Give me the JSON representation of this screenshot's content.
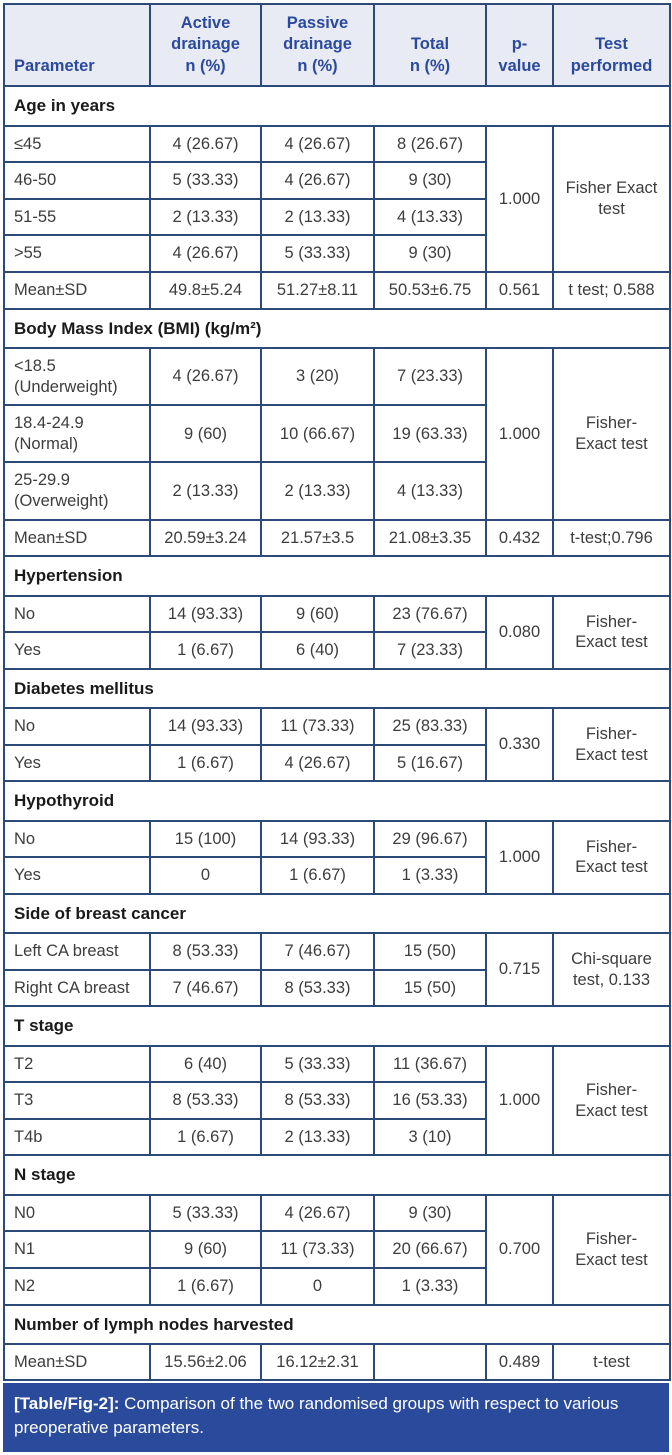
{
  "colors": {
    "border": "#2b4a77",
    "headerBg": "#e9ebf4",
    "headerText": "#2b4a9e",
    "captionBg": "#2a4b9b"
  },
  "table": {
    "columns": [
      {
        "key": "parameter",
        "label": "Parameter"
      },
      {
        "key": "active",
        "label": "Active\ndrainage\nn (%)"
      },
      {
        "key": "passive",
        "label": "Passive\ndrainage\nn (%)"
      },
      {
        "key": "total",
        "label": "Total\nn (%)"
      },
      {
        "key": "p-value",
        "label": "p-\nvalue"
      },
      {
        "key": "test-performed",
        "label": "Test\nperformed"
      }
    ],
    "sections": [
      {
        "header": "Age in years",
        "groups": [
          {
            "rows": [
              {
                "param": "≤45",
                "active": "4 (26.67)",
                "passive": "4 (26.67)",
                "total": "8 (26.67)"
              },
              {
                "param": "46-50",
                "active": "5 (33.33)",
                "passive": "4 (26.67)",
                "total": "9 (30)"
              },
              {
                "param": "51-55",
                "active": "2 (13.33)",
                "passive": "2 (13.33)",
                "total": "4 (13.33)"
              },
              {
                "param": ">55",
                "active": "4 (26.67)",
                "passive": "5 (33.33)",
                "total": "9 (30)"
              }
            ],
            "p": "1.000",
            "test": "Fisher Exact\ntest"
          },
          {
            "rows": [
              {
                "param": "Mean±SD",
                "active": "49.8±5.24",
                "passive": "51.27±8.11",
                "total": "50.53±6.75"
              }
            ],
            "p": "0.561",
            "test": "t test; 0.588"
          }
        ]
      },
      {
        "header": "Body Mass Index (BMI) (kg/m²)",
        "groups": [
          {
            "rows": [
              {
                "param": "<18.5\n(Underweight)",
                "active": "4 (26.67)",
                "passive": "3 (20)",
                "total": "7 (23.33)"
              },
              {
                "param": "18.4-24.9\n(Normal)",
                "active": "9 (60)",
                "passive": "10 (66.67)",
                "total": "19 (63.33)"
              },
              {
                "param": "25-29.9\n(Overweight)",
                "active": "2 (13.33)",
                "passive": "2 (13.33)",
                "total": "4 (13.33)"
              }
            ],
            "p": "1.000",
            "test": "Fisher-\nExact test"
          },
          {
            "rows": [
              {
                "param": "Mean±SD",
                "active": "20.59±3.24",
                "passive": "21.57±3.5",
                "total": "21.08±3.35"
              }
            ],
            "p": "0.432",
            "test": "t-test;0.796"
          }
        ]
      },
      {
        "header": "Hypertension",
        "groups": [
          {
            "rows": [
              {
                "param": "No",
                "active": "14 (93.33)",
                "passive": "9 (60)",
                "total": "23 (76.67)"
              },
              {
                "param": "Yes",
                "active": "1 (6.67)",
                "passive": "6 (40)",
                "total": "7 (23.33)"
              }
            ],
            "p": "0.080",
            "test": "Fisher-\nExact test"
          }
        ]
      },
      {
        "header": "Diabetes mellitus",
        "groups": [
          {
            "rows": [
              {
                "param": "No",
                "active": "14 (93.33)",
                "passive": "11 (73.33)",
                "total": "25 (83.33)"
              },
              {
                "param": "Yes",
                "active": "1 (6.67)",
                "passive": "4 (26.67)",
                "total": "5 (16.67)"
              }
            ],
            "p": "0.330",
            "test": "Fisher-\nExact test"
          }
        ]
      },
      {
        "header": "Hypothyroid",
        "groups": [
          {
            "rows": [
              {
                "param": "No",
                "active": "15 (100)",
                "passive": "14 (93.33)",
                "total": "29 (96.67)"
              },
              {
                "param": "Yes",
                "active": "0",
                "passive": "1 (6.67)",
                "total": "1 (3.33)"
              }
            ],
            "p": "1.000",
            "test": "Fisher-\nExact test"
          }
        ]
      },
      {
        "header": "Side of breast cancer",
        "groups": [
          {
            "rows": [
              {
                "param": "Left CA breast",
                "active": "8 (53.33)",
                "passive": "7 (46.67)",
                "total": "15 (50)"
              },
              {
                "param": "Right CA breast",
                "active": "7 (46.67)",
                "passive": "8 (53.33)",
                "total": "15 (50)"
              }
            ],
            "p": "0.715",
            "test": "Chi-square\ntest, 0.133"
          }
        ]
      },
      {
        "header": "T stage",
        "groups": [
          {
            "rows": [
              {
                "param": "T2",
                "active": "6 (40)",
                "passive": "5 (33.33)",
                "total": "11 (36.67)"
              },
              {
                "param": "T3",
                "active": "8 (53.33)",
                "passive": "8 (53.33)",
                "total": "16 (53.33)"
              },
              {
                "param": "T4b",
                "active": "1 (6.67)",
                "passive": "2 (13.33)",
                "total": "3 (10)"
              }
            ],
            "p": "1.000",
            "test": "Fisher-\nExact test"
          }
        ]
      },
      {
        "header": "N stage",
        "groups": [
          {
            "rows": [
              {
                "param": "N0",
                "active": "5 (33.33)",
                "passive": "4 (26.67)",
                "total": "9 (30)"
              },
              {
                "param": "N1",
                "active": "9 (60)",
                "passive": "11 (73.33)",
                "total": "20 (66.67)"
              },
              {
                "param": "N2",
                "active": "1 (6.67)",
                "passive": "0",
                "total": "1 (3.33)"
              }
            ],
            "p": "0.700",
            "test": "Fisher-\nExact test"
          }
        ]
      },
      {
        "header": "Number of lymph nodes harvested",
        "groups": [
          {
            "rows": [
              {
                "param": "Mean±SD",
                "active": "15.56±2.06",
                "passive": "16.12±2.31",
                "total": ""
              }
            ],
            "p": "0.489",
            "test": "t-test"
          }
        ]
      }
    ]
  },
  "caption": {
    "label": "[Table/Fig-2]:",
    "text": " Comparison of the two randomised groups with respect to various preoperative parameters."
  }
}
